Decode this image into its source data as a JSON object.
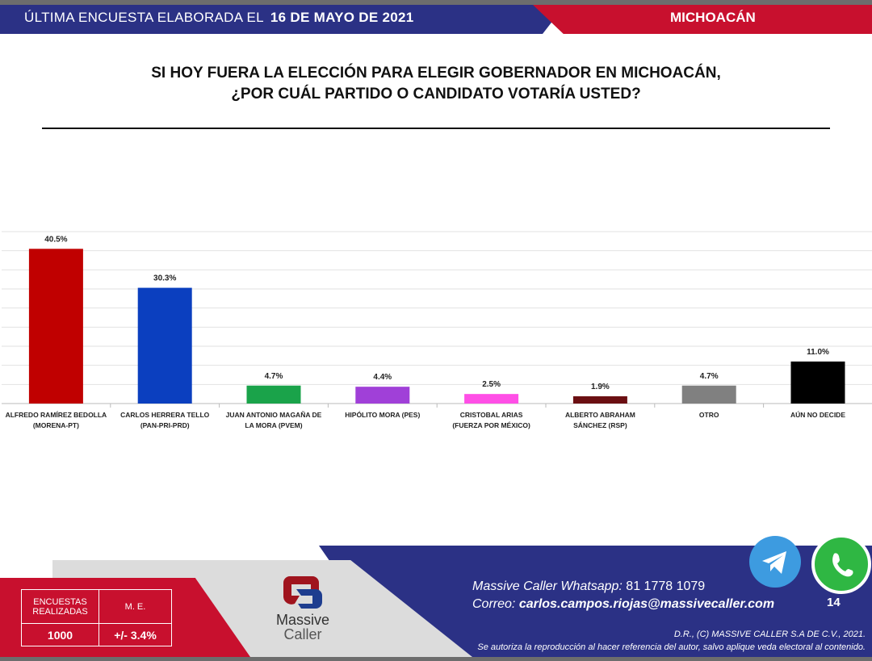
{
  "header": {
    "prefix": "ÚLTIMA ENCUESTA ELABORADA EL",
    "date": "16 DE MAYO DE 2021",
    "state": "MICHOACÁN"
  },
  "question": {
    "line1": "SI HOY FUERA LA ELECCIÓN PARA ELEGIR GOBERNADOR EN MICHOACÁN,",
    "line2": "¿POR CUÁL PARTIDO O CANDIDATO VOTARÍA USTED?"
  },
  "chart_data": {
    "type": "bar",
    "ylim": [
      0,
      45
    ],
    "grid": true,
    "categories": [
      [
        "ALFREDO RAMÍREZ BEDOLLA",
        "(MORENA-PT)"
      ],
      [
        "CARLOS HERRERA TELLO",
        "(PAN-PRI-PRD)"
      ],
      [
        "JUAN ANTONIO MAGAÑA DE",
        "LA MORA (PVEM)"
      ],
      [
        "HIPÓLITO MORA (PES)",
        ""
      ],
      [
        "CRISTOBAL ARIAS",
        "(FUERZA POR MÉXICO)"
      ],
      [
        "ALBERTO ABRAHAM",
        "SÁNCHEZ (RSP)"
      ],
      [
        "OTRO",
        ""
      ],
      [
        "AÚN NO DECIDE",
        ""
      ]
    ],
    "values": [
      40.5,
      30.3,
      4.7,
      4.4,
      2.5,
      1.9,
      4.7,
      11.0
    ],
    "labels": [
      "40.5%",
      "30.3%",
      "4.7%",
      "4.4%",
      "2.5%",
      "1.9%",
      "4.7%",
      "11.0%"
    ],
    "colors": [
      "#c00000",
      "#0b3fbf",
      "#1aa34a",
      "#a040d8",
      "#ff4fe6",
      "#6b0f12",
      "#808080",
      "#000000"
    ]
  },
  "footer": {
    "stats": {
      "h1": "ENCUESTAS REALIZADAS",
      "h2": "M. E.",
      "v1": "1000",
      "v2": "+/- 3.4%"
    },
    "logo": {
      "line1": "Massive",
      "line2": "Caller"
    },
    "whatsapp_label": "Massive Caller Whatsapp:",
    "whatsapp_number": "81 1778 1079",
    "email_label": "Correo:",
    "email": "carlos.campos.riojas@massivecaller.com",
    "page": "14",
    "copyright": "D.R., (C) MASSIVE CALLER S.A DE C.V., 2021.",
    "notice": "Se autoriza la reproducción al hacer referencia del autor, salvo aplique veda electoral al contenido."
  }
}
